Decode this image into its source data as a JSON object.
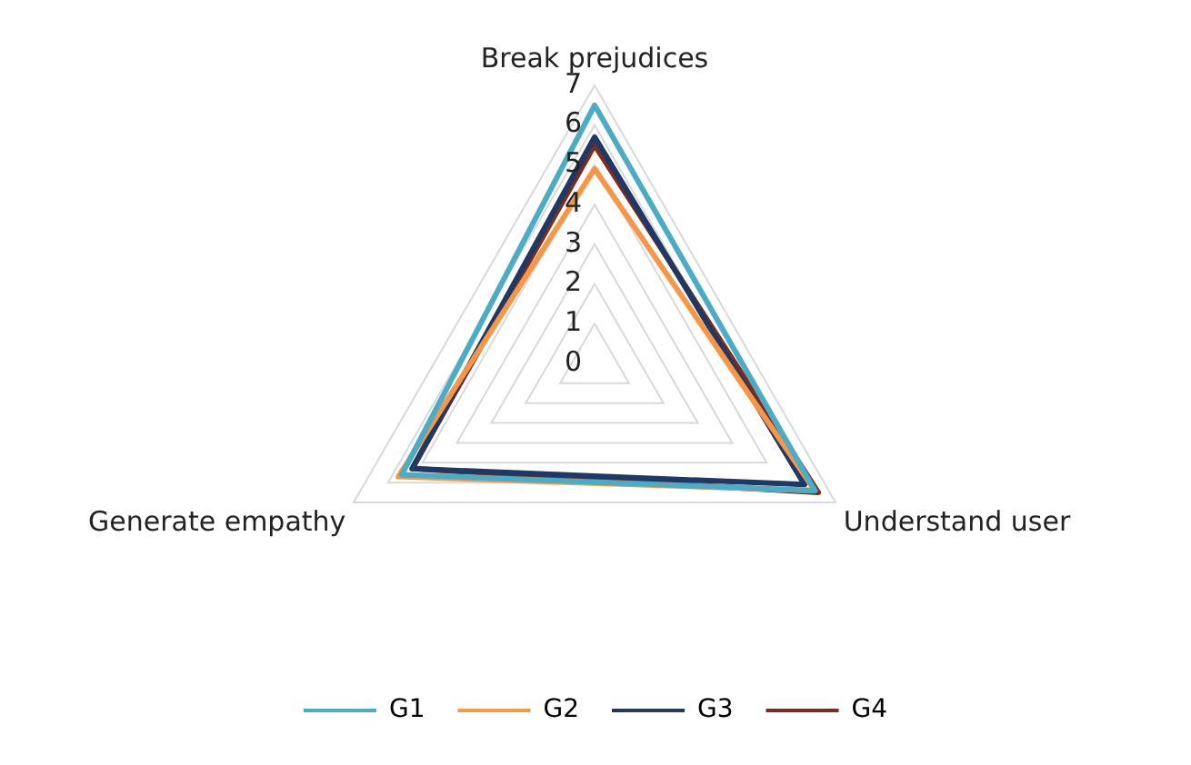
{
  "chart_data": {
    "type": "radar",
    "categories": [
      "Break prejudices",
      "Understand user",
      "Generate empathy"
    ],
    "series": [
      {
        "name": "G1",
        "color": "#4bacc6",
        "values": [
          6.5,
          6.4,
          5.6
        ]
      },
      {
        "name": "G2",
        "color": "#f79646",
        "values": [
          4.9,
          6.4,
          5.7
        ]
      },
      {
        "name": "G3",
        "color": "#1f3864",
        "values": [
          5.7,
          6.1,
          5.3
        ]
      },
      {
        "name": "G4",
        "color": "#7b2c22",
        "values": [
          5.5,
          6.5,
          5.3
        ]
      }
    ],
    "ylim": [
      0,
      7
    ],
    "yticks": [
      0,
      1,
      2,
      3,
      4,
      5,
      6,
      7
    ],
    "grid": true,
    "legend": "bottom",
    "marker": "none"
  }
}
